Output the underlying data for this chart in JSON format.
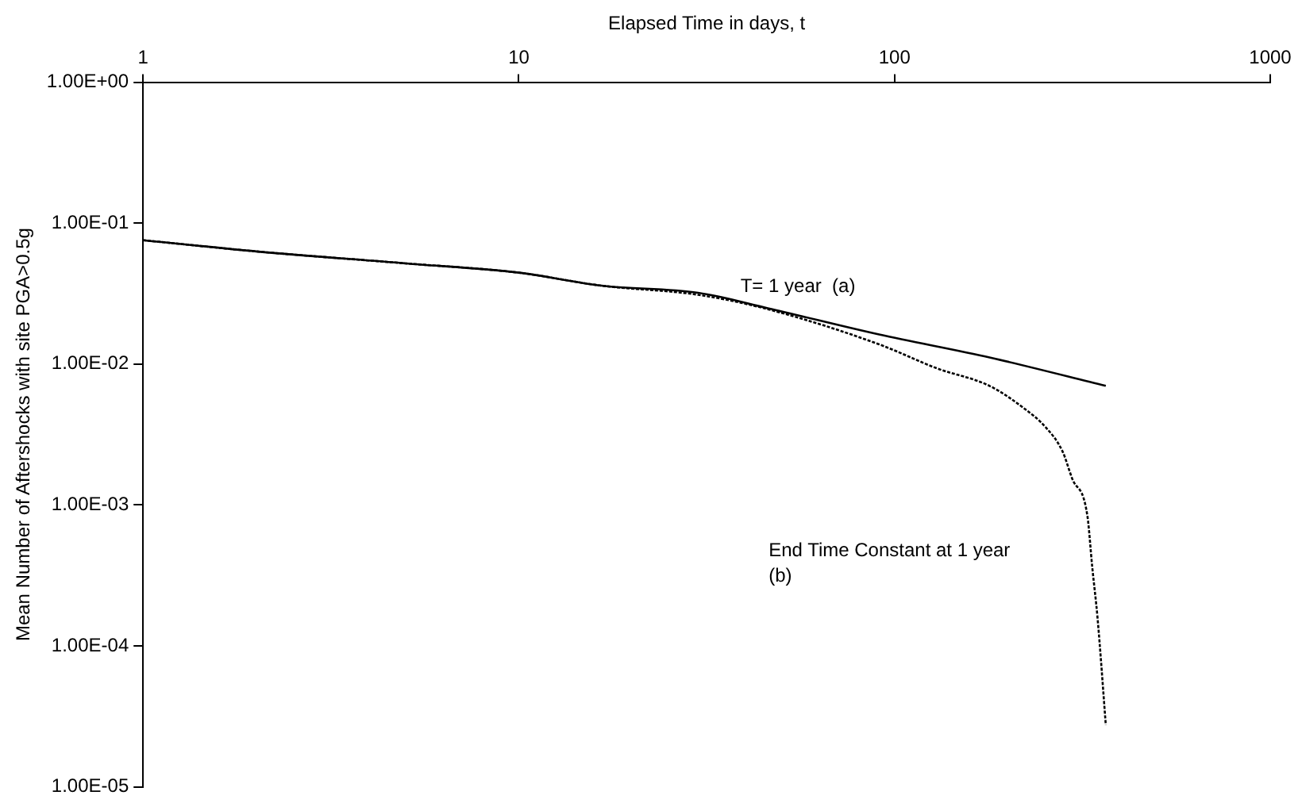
{
  "chart_data": {
    "type": "line",
    "xlabel": "Elapsed Time in days, t",
    "ylabel": "Mean Number of Aftershocks with site PGA>0.5g",
    "series": [
      {
        "color": "#000000",
        "line_style": "solid",
        "x": [
          1,
          2,
          5,
          10,
          16.6,
          30,
          46,
          91,
          180,
          365
        ],
        "values": [
          0.0757,
          0.063,
          0.0518,
          0.0445,
          0.036,
          0.032,
          0.0249,
          0.0162,
          0.0111,
          0.007
        ]
      },
      {
        "color": "#000000",
        "line_style": "dotted",
        "x": [
          1,
          2,
          5,
          10,
          16.6,
          30,
          46,
          91,
          130,
          179,
          220,
          253,
          280,
          297,
          326,
          336,
          347,
          365
        ],
        "values": [
          0.0757,
          0.063,
          0.0518,
          0.0445,
          0.036,
          0.031,
          0.0245,
          0.0138,
          0.0093,
          0.007,
          0.0049,
          0.00354,
          0.0024,
          0.00154,
          0.00084,
          0.00036,
          0.000158,
          2.75e-05
        ]
      }
    ],
    "annotations": [
      "T= 1 year  (a)",
      "End Time Constant at 1 year\n(b)"
    ],
    "log": "xy",
    "grid": false,
    "legend": false,
    "marker": "none",
    "xlim": [
      1,
      1000
    ],
    "xticks": [
      1,
      10,
      100,
      1000
    ],
    "ylim": [
      1e-05,
      1
    ],
    "yticks": [
      {
        "value": 1,
        "label": "1.00E+00"
      },
      {
        "value": 0.1,
        "label": "1.00E-01"
      },
      {
        "value": 0.01,
        "label": "1.00E-02"
      },
      {
        "value": 0.001,
        "label": "1.00E-03"
      },
      {
        "value": 0.0001,
        "label": "1.00E-04"
      },
      {
        "value": 1e-05,
        "label": "1.00E-05"
      }
    ]
  }
}
